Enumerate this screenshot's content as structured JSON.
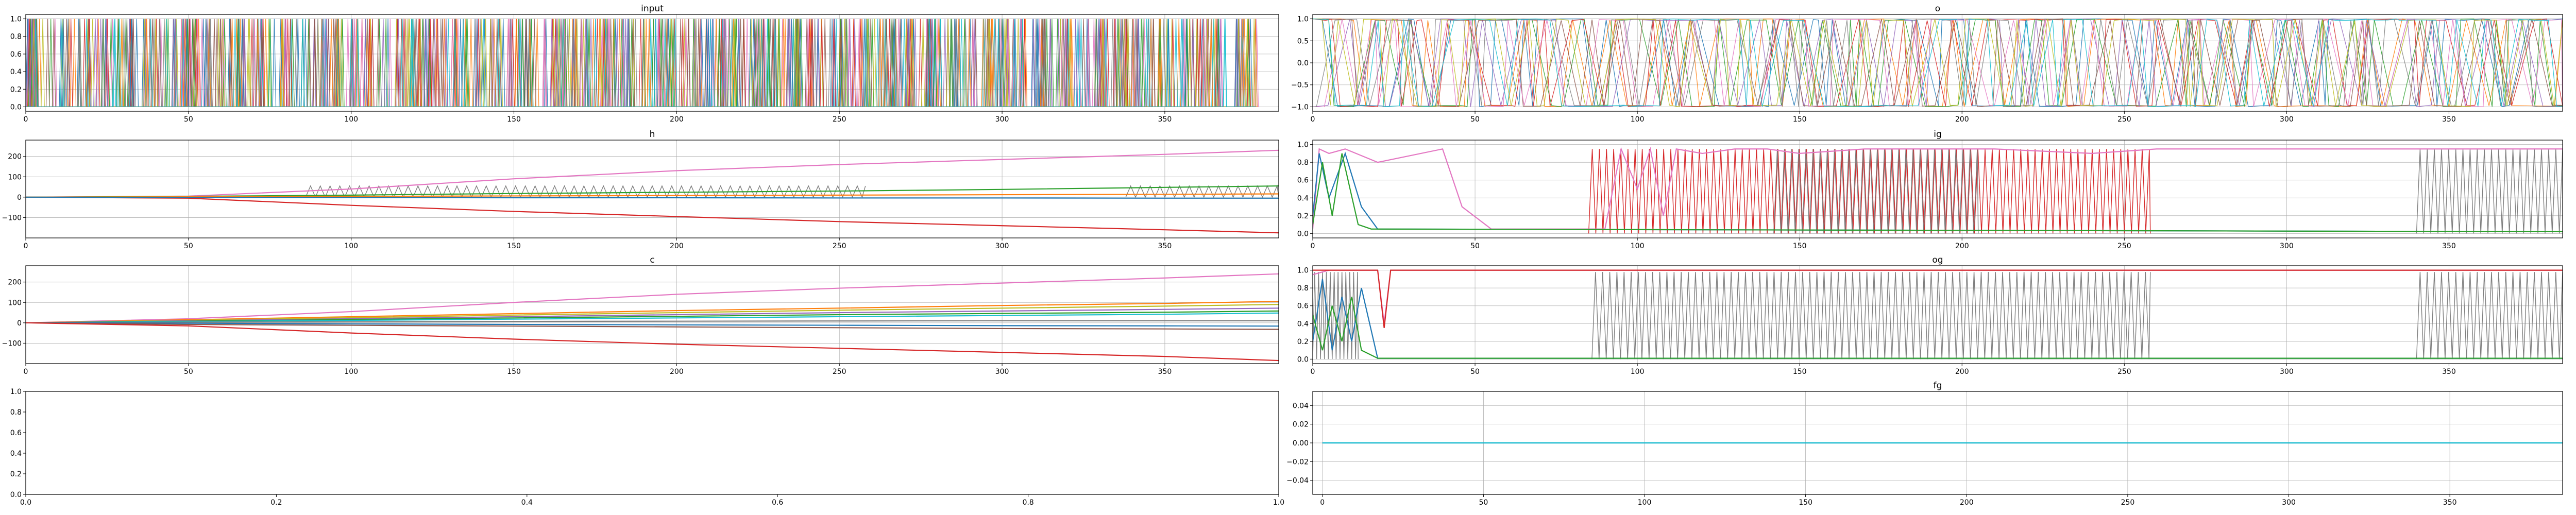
{
  "figure": {
    "panel_count": 8
  },
  "chart_data": [
    {
      "id": "input",
      "type": "line",
      "title": "input",
      "xlim": [
        0,
        385
      ],
      "ylim": [
        -0.05,
        1.05
      ],
      "xticks": [
        0,
        50,
        100,
        150,
        200,
        250,
        300,
        350
      ],
      "yticks": [
        0.0,
        0.2,
        0.4,
        0.6,
        0.8,
        1.0
      ],
      "ytick_labels": [
        "0.0",
        "0.2",
        "0.4",
        "0.6",
        "0.8",
        "1.0"
      ],
      "grid": true,
      "pattern": {
        "kind": "onehot",
        "x_end": 378,
        "lines": 40
      },
      "colors": [
        "#1f77b4",
        "#ff7f0e",
        "#2ca02c",
        "#d62728",
        "#9467bd",
        "#8c564b",
        "#e377c2",
        "#7f7f7f",
        "#bcbd22",
        "#17becf"
      ]
    },
    {
      "id": "o",
      "type": "line",
      "title": "o",
      "xlim": [
        0,
        385
      ],
      "ylim": [
        -1.1,
        1.1
      ],
      "xticks": [
        0,
        50,
        100,
        150,
        200,
        250,
        300,
        350
      ],
      "yticks": [
        -1.0,
        -0.5,
        0.0,
        0.5,
        1.0
      ],
      "ytick_labels": [
        "−1.0",
        "−0.5",
        "0.0",
        "0.5",
        "1.0"
      ],
      "grid": true,
      "pattern": {
        "kind": "saturated",
        "x_end": 385,
        "lines": 10
      },
      "colors": [
        "#1f77b4",
        "#ff7f0e",
        "#2ca02c",
        "#d62728",
        "#9467bd",
        "#8c564b",
        "#e377c2",
        "#7f7f7f",
        "#bcbd22",
        "#17becf"
      ]
    },
    {
      "id": "h",
      "type": "line",
      "title": "h",
      "xlim": [
        0,
        385
      ],
      "ylim": [
        -200,
        280
      ],
      "xticks": [
        0,
        50,
        100,
        150,
        200,
        250,
        300,
        350
      ],
      "yticks": [
        -100,
        0,
        100,
        200
      ],
      "ytick_labels": [
        "−100",
        "0",
        "100",
        "200"
      ],
      "grid": true,
      "series": [
        {
          "color": "#e377c2",
          "x": [
            0,
            50,
            100,
            150,
            200,
            250,
            300,
            350,
            385
          ],
          "values": [
            0,
            5,
            40,
            90,
            130,
            160,
            185,
            210,
            230
          ]
        },
        {
          "color": "#d62728",
          "x": [
            0,
            50,
            100,
            150,
            200,
            250,
            300,
            350,
            385
          ],
          "values": [
            0,
            -5,
            -40,
            -70,
            -95,
            -120,
            -140,
            -160,
            -175
          ]
        },
        {
          "color": "#2ca02c",
          "x": [
            0,
            50,
            100,
            150,
            200,
            250,
            300,
            350,
            385
          ],
          "values": [
            0,
            4,
            10,
            18,
            24,
            30,
            38,
            48,
            55
          ]
        },
        {
          "color": "#ff7f0e",
          "x": [
            0,
            50,
            100,
            150,
            200,
            250,
            300,
            350,
            385
          ],
          "values": [
            0,
            2,
            4,
            6,
            8,
            10,
            12,
            14,
            16
          ]
        },
        {
          "color": "#1f77b4",
          "x": [
            0,
            50,
            100,
            150,
            200,
            250,
            300,
            350,
            385
          ],
          "values": [
            0,
            -1,
            -2,
            -3,
            -3,
            -4,
            -4,
            -5,
            -5
          ]
        }
      ],
      "oscillation": {
        "color": "#7f7f7f",
        "x_start": 86,
        "x_end": 258,
        "x2_start": 338,
        "x2_end": 385,
        "low": 0,
        "high": 55,
        "period": 3
      }
    },
    {
      "id": "ig",
      "type": "line",
      "title": "ig",
      "xlim": [
        0,
        385
      ],
      "ylim": [
        -0.05,
        1.05
      ],
      "xticks": [
        0,
        50,
        100,
        150,
        200,
        250,
        300,
        350
      ],
      "yticks": [
        0.0,
        0.2,
        0.4,
        0.6,
        0.8,
        1.0
      ],
      "ytick_labels": [
        "0.0",
        "0.2",
        "0.4",
        "0.6",
        "0.8",
        "1.0"
      ],
      "grid": true,
      "series": [
        {
          "color": "#e377c2",
          "x": [
            0,
            2,
            5,
            10,
            20,
            40,
            46,
            55,
            60,
            80,
            90,
            95,
            100,
            104,
            108,
            112,
            120,
            130,
            140,
            150,
            170,
            190,
            210,
            240,
            260,
            270,
            275,
            385
          ],
          "values": [
            0.05,
            0.95,
            0.9,
            0.95,
            0.8,
            0.95,
            0.3,
            0.05,
            0.05,
            0.05,
            0.05,
            0.95,
            0.5,
            0.95,
            0.2,
            0.95,
            0.9,
            0.95,
            0.95,
            0.9,
            0.95,
            0.95,
            0.95,
            0.9,
            0.95,
            0.95,
            0.95,
            0.95
          ]
        },
        {
          "color": "#1f77b4",
          "x": [
            0,
            2,
            5,
            10,
            15,
            20,
            385
          ],
          "values": [
            0.2,
            0.9,
            0.4,
            0.9,
            0.3,
            0.05,
            0.02
          ]
        },
        {
          "color": "#2ca02c",
          "x": [
            0,
            3,
            6,
            9,
            14,
            18,
            385
          ],
          "values": [
            0.1,
            0.8,
            0.2,
            0.9,
            0.1,
            0.05,
            0.02
          ]
        }
      ],
      "oscillations": [
        {
          "color": "#d62728",
          "x_start": 85,
          "x_end": 258,
          "low": 0.0,
          "high": 0.95,
          "period": 2.2
        },
        {
          "color": "#7f7f7f",
          "x_start": 142,
          "x_end": 205,
          "low": 0.0,
          "high": 0.95,
          "period": 2.2
        },
        {
          "color": "#7f7f7f",
          "x_start": 340,
          "x_end": 385,
          "low": 0.0,
          "high": 0.95,
          "period": 2.2
        }
      ]
    },
    {
      "id": "c",
      "type": "line",
      "title": "c",
      "xlim": [
        0,
        385
      ],
      "ylim": [
        -200,
        280
      ],
      "xticks": [
        0,
        50,
        100,
        150,
        200,
        250,
        300,
        350
      ],
      "yticks": [
        -100,
        0,
        100,
        200
      ],
      "ytick_labels": [
        "−100",
        "0",
        "100",
        "200"
      ],
      "grid": true,
      "series": [
        {
          "color": "#e377c2",
          "x": [
            0,
            50,
            100,
            150,
            200,
            250,
            300,
            350,
            385
          ],
          "values": [
            0,
            20,
            55,
            100,
            140,
            170,
            195,
            220,
            240
          ]
        },
        {
          "color": "#ff7f0e",
          "x": [
            0,
            50,
            100,
            150,
            200,
            250,
            300,
            350,
            385
          ],
          "values": [
            0,
            15,
            30,
            45,
            60,
            72,
            85,
            95,
            105
          ]
        },
        {
          "color": "#bcbd22",
          "x": [
            0,
            50,
            100,
            150,
            200,
            250,
            300,
            350,
            385
          ],
          "values": [
            0,
            12,
            25,
            38,
            50,
            62,
            72,
            82,
            90
          ]
        },
        {
          "color": "#9467bd",
          "x": [
            0,
            50,
            100,
            150,
            200,
            250,
            300,
            350,
            385
          ],
          "values": [
            0,
            10,
            20,
            30,
            40,
            50,
            58,
            66,
            72
          ]
        },
        {
          "color": "#2ca02c",
          "x": [
            0,
            50,
            100,
            150,
            200,
            250,
            300,
            350,
            385
          ],
          "values": [
            0,
            8,
            16,
            24,
            32,
            40,
            46,
            52,
            58
          ]
        },
        {
          "color": "#17becf",
          "x": [
            0,
            50,
            100,
            150,
            200,
            250,
            300,
            350,
            385
          ],
          "values": [
            0,
            6,
            12,
            18,
            24,
            30,
            36,
            42,
            48
          ]
        },
        {
          "color": "#7f7f7f",
          "x": [
            0,
            50,
            100,
            150,
            200,
            250,
            300,
            350,
            385
          ],
          "values": [
            0,
            3,
            5,
            7,
            8,
            9,
            10,
            10,
            10
          ]
        },
        {
          "color": "#1f77b4",
          "x": [
            0,
            50,
            100,
            150,
            200,
            250,
            300,
            350,
            385
          ],
          "values": [
            0,
            -2,
            -5,
            -8,
            -10,
            -12,
            -14,
            -15,
            -16
          ]
        },
        {
          "color": "#8c564b",
          "x": [
            0,
            50,
            100,
            150,
            200,
            250,
            300,
            350,
            385
          ],
          "values": [
            0,
            -8,
            -12,
            -16,
            -20,
            -24,
            -28,
            -30,
            -32
          ]
        },
        {
          "color": "#d62728",
          "x": [
            0,
            50,
            100,
            150,
            200,
            250,
            300,
            350,
            385
          ],
          "values": [
            0,
            -15,
            -50,
            -80,
            -105,
            -125,
            -145,
            -165,
            -185
          ]
        }
      ]
    },
    {
      "id": "og",
      "type": "line",
      "title": "og",
      "xlim": [
        0,
        385
      ],
      "ylim": [
        -0.05,
        1.05
      ],
      "xticks": [
        0,
        50,
        100,
        150,
        200,
        250,
        300,
        350
      ],
      "yticks": [
        0.0,
        0.2,
        0.4,
        0.6,
        0.8,
        1.0
      ],
      "ytick_labels": [
        "0.0",
        "0.2",
        "0.4",
        "0.6",
        "0.8",
        "1.0"
      ],
      "grid": true,
      "series": [
        {
          "color": "#e377c2",
          "x": [
            0,
            5,
            10,
            15,
            20,
            22,
            24,
            26,
            30,
            385
          ],
          "values": [
            0.95,
            1.0,
            1.0,
            1.0,
            1.0,
            0.4,
            1.0,
            1.0,
            1.0,
            1.0
          ]
        },
        {
          "color": "#d62728",
          "x": [
            0,
            15,
            20,
            22,
            24,
            26,
            30,
            385
          ],
          "values": [
            1.0,
            1.0,
            1.0,
            0.35,
            1.0,
            1.0,
            1.0,
            1.0
          ]
        },
        {
          "color": "#1f77b4",
          "x": [
            0,
            3,
            6,
            9,
            12,
            15,
            20,
            385
          ],
          "values": [
            0.2,
            0.9,
            0.1,
            0.7,
            0.2,
            0.8,
            0.01,
            0.01
          ]
        },
        {
          "color": "#2ca02c",
          "x": [
            0,
            3,
            6,
            9,
            12,
            15,
            20,
            385
          ],
          "values": [
            0.5,
            0.1,
            0.6,
            0.2,
            0.7,
            0.1,
            0.01,
            0.01
          ]
        }
      ],
      "oscillations": [
        {
          "color": "#7f7f7f",
          "x_start": 86,
          "x_end": 258,
          "low": 0.0,
          "high": 0.98,
          "period": 2.2
        },
        {
          "color": "#7f7f7f",
          "x_start": 340,
          "x_end": 385,
          "low": 0.0,
          "high": 0.98,
          "period": 2.2
        },
        {
          "color": "#7f7f7f",
          "x_start": 0,
          "x_end": 14,
          "low": 0.0,
          "high": 0.98,
          "period": 1.2
        }
      ]
    },
    {
      "id": "empty",
      "type": "line",
      "title": "",
      "xlim": [
        0.0,
        1.0
      ],
      "ylim": [
        0.0,
        1.0
      ],
      "xticks": [
        0.0,
        0.2,
        0.4,
        0.6,
        0.8,
        1.0
      ],
      "xtick_labels": [
        "0.0",
        "0.2",
        "0.4",
        "0.6",
        "0.8",
        "1.0"
      ],
      "yticks": [
        0.0,
        0.2,
        0.4,
        0.6,
        0.8,
        1.0
      ],
      "ytick_labels": [
        "0.0",
        "0.2",
        "0.4",
        "0.6",
        "0.8",
        "1.0"
      ],
      "grid": false,
      "series": []
    },
    {
      "id": "fg",
      "type": "line",
      "title": "fg",
      "xlim": [
        -3,
        385
      ],
      "ylim": [
        -0.055,
        0.055
      ],
      "xticks": [
        0,
        50,
        100,
        150,
        200,
        250,
        300,
        350
      ],
      "yticks": [
        -0.04,
        -0.02,
        0.0,
        0.02,
        0.04
      ],
      "ytick_labels": [
        "−0.04",
        "−0.02",
        "0.00",
        "0.02",
        "0.04"
      ],
      "grid": true,
      "series": [
        {
          "color": "#1f77b4",
          "x": [
            0,
            385
          ],
          "values": [
            0,
            0
          ]
        },
        {
          "color": "#17becf",
          "x": [
            0,
            385
          ],
          "values": [
            0,
            0
          ]
        }
      ]
    }
  ]
}
